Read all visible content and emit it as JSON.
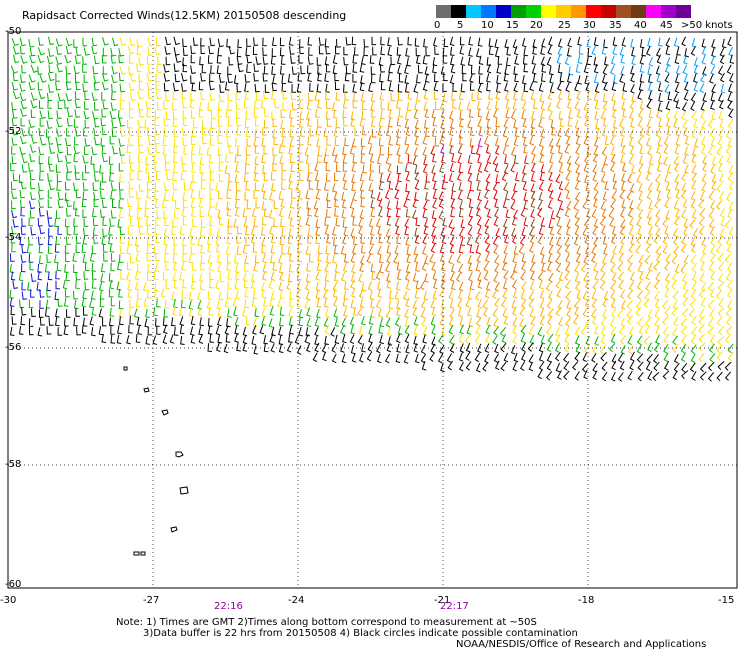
{
  "title": "Rapidsact Corrected Winds(12.5KM) 20150508 descending",
  "legend": {
    "colors": [
      "#6e6e6e",
      "#000000",
      "#00c8ff",
      "#0078ff",
      "#0000c8",
      "#00a000",
      "#00d200",
      "#ffff00",
      "#ffcc00",
      "#ff9900",
      "#ff0000",
      "#c80000",
      "#a05020",
      "#6e3c14",
      "#ff00ff",
      "#a000c8",
      "#6e0096"
    ],
    "ticks": [
      "0",
      "5",
      "10",
      "15",
      "20",
      "25",
      "30",
      "35",
      "40",
      "45",
      ">50 knots"
    ]
  },
  "axes": {
    "lat_labels": [
      "-50",
      "-52",
      "-54",
      "-56",
      "-58",
      "-60"
    ],
    "lon_labels": [
      "-30",
      "-27",
      "-24",
      "-21",
      "-18",
      "-15"
    ]
  },
  "times": [
    "22:16",
    "22:17"
  ],
  "notes": {
    "line1": "Note: 1) Times are GMT 2)Times along bottom correspond to measurement at ~50S",
    "line2": "3)Data buffer is 22 hrs from 20150508 4) Black circles indicate possible contamination",
    "line3": "NOAA/NESDIS/Office of Research and Applications"
  }
}
